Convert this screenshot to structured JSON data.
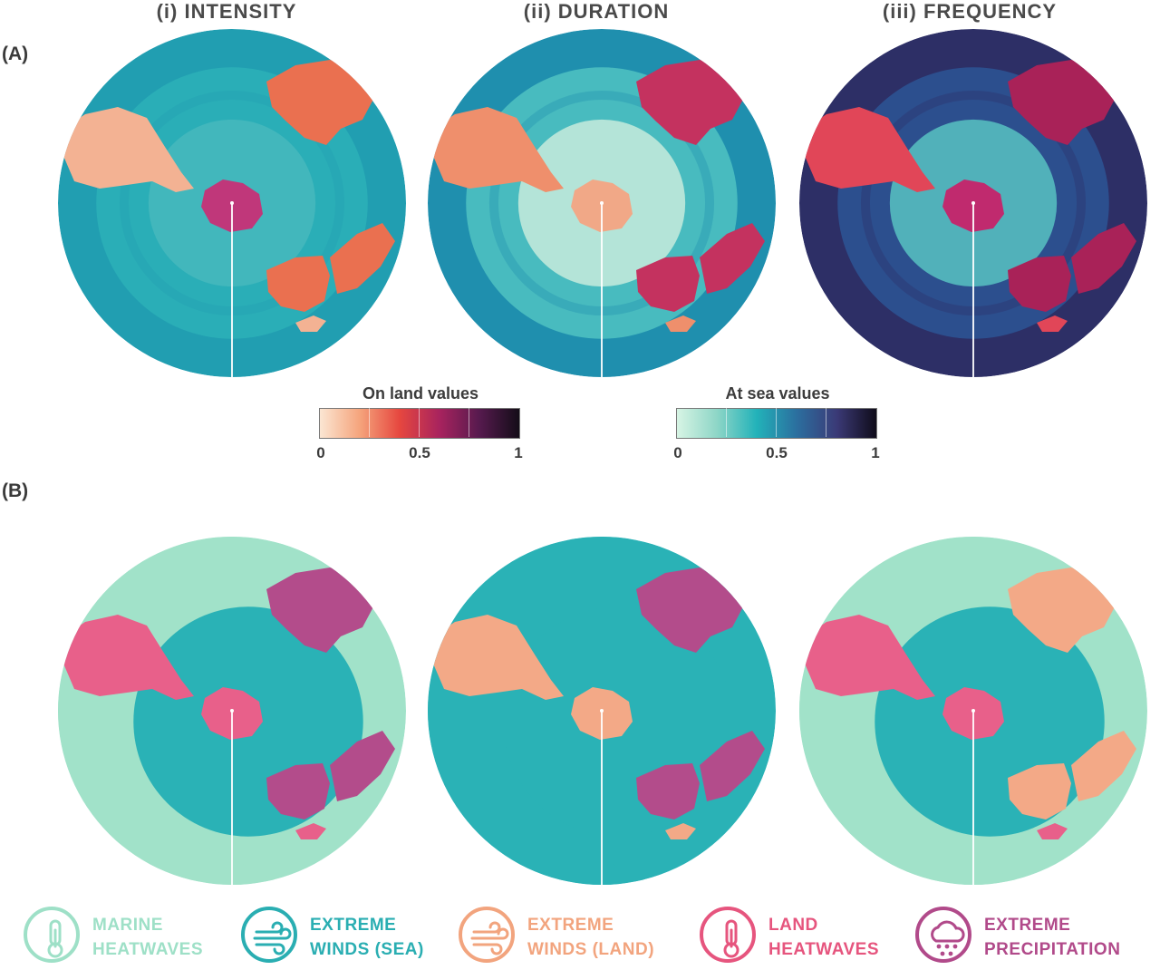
{
  "columns": [
    {
      "title": "(i) INTENSITY"
    },
    {
      "title": "(ii) DURATION"
    },
    {
      "title": "(iii) FREQUENCY"
    }
  ],
  "panels": {
    "a": "(A)",
    "b": "(B)"
  },
  "colorbars": {
    "land": {
      "title": "On land values",
      "ticks": [
        "0",
        "0.5",
        "1"
      ],
      "colors": [
        "#fbe6d3",
        "#f5a47c",
        "#e6473f",
        "#a8235e",
        "#561a4e",
        "#140d18"
      ]
    },
    "sea": {
      "title": "At sea values",
      "ticks": [
        "0",
        "0.5",
        "1"
      ],
      "colors": [
        "#d7f4e4",
        "#8ed6c7",
        "#22b2b9",
        "#2b6f9f",
        "#3b3a77",
        "#100c1a"
      ]
    }
  },
  "maps_a": [
    {
      "ocean": "#2aaeb7",
      "ocean_inner": "#46b9bd",
      "ocean_outer": "#219eb1",
      "land": "#f3b293",
      "land_alt": "#ea7050",
      "antarctica": "#c0377a"
    },
    {
      "ocean": "#48bbbf",
      "ocean_inner": "#c8ebdc",
      "ocean_outer": "#1f8fae",
      "land": "#ef8f6c",
      "land_alt": "#c4325f",
      "antarctica": "#f1a887"
    },
    {
      "ocean": "#2c4f8e",
      "ocean_inner": "#58c2c2",
      "ocean_outer": "#2d2f66",
      "land": "#e14658",
      "land_alt": "#a92258",
      "antarctica": "#c02a6e"
    }
  ],
  "maps_b": [
    {
      "ocean": "#2ab2b6",
      "ocean_outer": "#a1e2c9",
      "land": "#e8608a",
      "land_alt": "#b34c8b",
      "antarctica": "#e8608a"
    },
    {
      "ocean": "#2ab2b6",
      "ocean_outer": "#2ab2b6",
      "land": "#f3a987",
      "land_alt": "#b34c8b",
      "antarctica": "#f3a987"
    },
    {
      "ocean": "#2ab2b6",
      "ocean_outer": "#a1e2c9",
      "land": "#e8608a",
      "land_alt": "#f3a987",
      "antarctica": "#e8608a"
    }
  ],
  "legend": [
    {
      "icon": "thermometer-icon",
      "line1": "MARINE",
      "line2": "HEATWAVES",
      "color": "#9ee0c7"
    },
    {
      "icon": "wind-icon",
      "line1": "EXTREME",
      "line2": "WINDS (SEA)",
      "color": "#2aaeb2"
    },
    {
      "icon": "wind-icon",
      "line1": "EXTREME",
      "line2": "WINDS (LAND)",
      "color": "#f2a47e"
    },
    {
      "icon": "thermometer-icon",
      "line1": "LAND",
      "line2": "HEATWAVES",
      "color": "#e6557e"
    },
    {
      "icon": "rain-cloud-icon",
      "line1": "EXTREME",
      "line2": "PRECIPITATION",
      "color": "#b14a8a"
    }
  ]
}
